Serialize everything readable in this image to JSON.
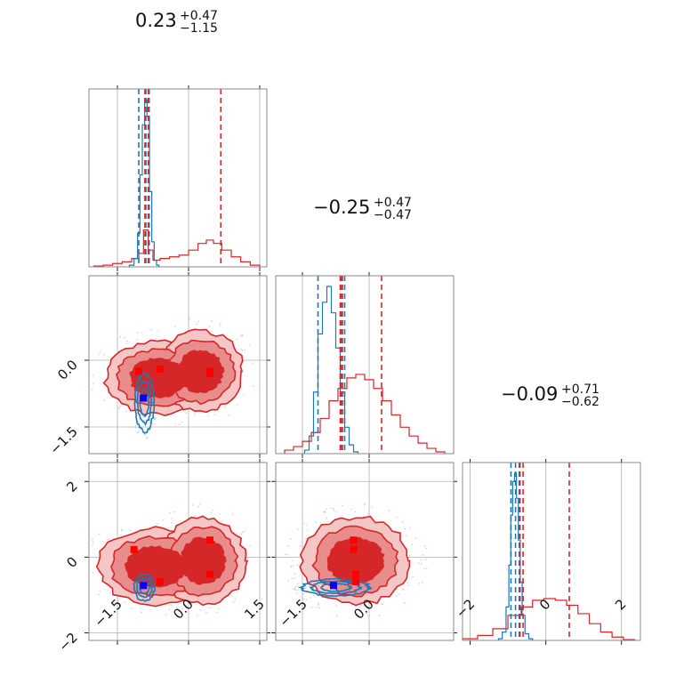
{
  "chart_data": {
    "type": "corner",
    "grid": true,
    "colors": {
      "red": "#d62728",
      "blue": "#1f77b4",
      "red_fill_light": "#f4c6c6",
      "red_fill_mid": "#e88c8c",
      "red_fill_dark": "#d62728",
      "blue_marker": "#0000ff",
      "red_marker": "#ff0000"
    },
    "params": [
      {
        "title": {
          "median": "0.23",
          "plus": "+0.47",
          "minus": "−1.15"
        },
        "range": [
          -2.1,
          1.65
        ],
        "ticks": [
          -1.5,
          0.0,
          1.5
        ],
        "tick_labels": [
          "−1.5",
          "0.0",
          "1.5"
        ]
      },
      {
        "title": {
          "median": "−0.25",
          "plus": "+0.47",
          "minus": "−0.47"
        },
        "range": [
          -2.1,
          1.9
        ],
        "ticks": [
          -1.5,
          0.0
        ],
        "tick_labels": [
          "−1.5",
          "0.0"
        ]
      },
      {
        "title": {
          "median": "−0.09",
          "plus": "+0.71",
          "minus": "−0.62"
        },
        "range": [
          -2.2,
          2.5
        ],
        "ticks": [
          -2,
          0,
          2
        ],
        "tick_labels": [
          "−2",
          "0",
          "2"
        ]
      }
    ],
    "marginals": [
      {
        "red_quantiles": [
          -0.92,
          -0.85,
          0.68
        ],
        "blue_quantiles": [
          -1.05,
          -0.9,
          -0.83
        ],
        "red_hist": {
          "x": [
            -1.9,
            -1.7,
            -1.5,
            -1.3,
            -1.1,
            -1.0,
            -0.9,
            -0.8,
            -0.7,
            -0.5,
            -0.3,
            -0.1,
            0.1,
            0.3,
            0.45,
            0.6,
            0.8,
            1.0,
            1.2,
            1.4
          ],
          "y": [
            0.005,
            0.01,
            0.02,
            0.03,
            0.05,
            0.08,
            0.22,
            0.1,
            0.04,
            0.05,
            0.06,
            0.07,
            0.1,
            0.14,
            0.16,
            0.14,
            0.1,
            0.06,
            0.03,
            0.01
          ]
        },
        "blue_hist": {
          "x": [
            -1.2,
            -1.1,
            -1.05,
            -1.0,
            -0.95,
            -0.9,
            -0.85,
            -0.8,
            -0.75,
            -0.7,
            -0.65
          ],
          "y": [
            0.01,
            0.05,
            0.2,
            0.55,
            0.85,
            1.0,
            0.9,
            0.45,
            0.15,
            0.04,
            0.01
          ]
        }
      },
      {
        "red_quantiles": [
          -0.65,
          -0.6,
          0.28
        ],
        "blue_quantiles": [
          -1.15,
          -0.63,
          -0.55
        ],
        "red_hist": {
          "x": [
            -1.8,
            -1.6,
            -1.4,
            -1.2,
            -1.0,
            -0.8,
            -0.6,
            -0.4,
            -0.2,
            0.0,
            0.2,
            0.4,
            0.6,
            0.8,
            1.0,
            1.2,
            1.4,
            1.6
          ],
          "y": [
            0.02,
            0.04,
            0.07,
            0.12,
            0.2,
            0.3,
            0.37,
            0.43,
            0.45,
            0.42,
            0.37,
            0.3,
            0.22,
            0.15,
            0.1,
            0.06,
            0.03,
            0.01
          ]
        },
        "blue_hist": {
          "x": [
            -1.4,
            -1.3,
            -1.2,
            -1.1,
            -1.0,
            -0.9,
            -0.8,
            -0.7,
            -0.6,
            -0.5,
            -0.4,
            -0.3
          ],
          "y": [
            0.02,
            0.1,
            0.35,
            0.68,
            0.86,
            0.95,
            0.8,
            0.6,
            0.35,
            0.15,
            0.05,
            0.01
          ]
        }
      },
      {
        "red_quantiles": [
          -0.7,
          -0.6,
          0.62
        ],
        "blue_quantiles": [
          -0.92,
          -0.8,
          -0.68
        ],
        "red_hist": {
          "x": [
            -2.0,
            -1.6,
            -1.2,
            -0.8,
            -0.5,
            -0.2,
            0.1,
            0.4,
            0.7,
            1.0,
            1.3,
            1.6,
            1.9,
            2.2
          ],
          "y": [
            0.01,
            0.03,
            0.07,
            0.15,
            0.2,
            0.24,
            0.25,
            0.24,
            0.21,
            0.16,
            0.1,
            0.05,
            0.02,
            0.005
          ]
        },
        "blue_hist": {
          "x": [
            -1.2,
            -1.1,
            -1.0,
            -0.95,
            -0.9,
            -0.85,
            -0.8,
            -0.75,
            -0.7,
            -0.65,
            -0.6,
            -0.5,
            -0.4
          ],
          "y": [
            0.01,
            0.05,
            0.2,
            0.45,
            0.75,
            0.95,
            1.0,
            0.85,
            0.6,
            0.35,
            0.15,
            0.04,
            0.01
          ]
        }
      }
    ],
    "pairs": [
      {
        "row": 1,
        "col": 0,
        "red_points": [
          [
            -1.05,
            -0.25
          ],
          [
            -0.6,
            -0.2
          ],
          [
            0.45,
            -0.25
          ],
          [
            0.45,
            -0.3
          ]
        ],
        "blue_points": [
          [
            -0.95,
            -0.85
          ]
        ],
        "red_regions": [
          {
            "cx": -0.65,
            "cy": -0.4,
            "rx": 1.1,
            "ry": 0.82
          },
          {
            "cx": 0.25,
            "cy": -0.25,
            "rx": 0.9,
            "ry": 0.9
          }
        ],
        "blue_regions": [
          {
            "cx": -0.93,
            "cy": -0.95,
            "rx": 0.2,
            "ry": 0.65
          }
        ]
      },
      {
        "row": 2,
        "col": 0,
        "red_points": [
          [
            -1.15,
            0.2
          ],
          [
            -0.6,
            -0.65
          ],
          [
            0.45,
            0.45
          ],
          [
            0.45,
            -0.45
          ]
        ],
        "blue_points": [
          [
            -0.95,
            -0.75
          ]
        ],
        "red_regions": [
          {
            "cx": -0.7,
            "cy": -0.25,
            "rx": 1.2,
            "ry": 1.0
          },
          {
            "cx": 0.3,
            "cy": -0.1,
            "rx": 0.9,
            "ry": 1.15
          }
        ],
        "blue_regions": [
          {
            "cx": -0.93,
            "cy": -0.8,
            "rx": 0.22,
            "ry": 0.35
          }
        ]
      },
      {
        "row": 2,
        "col": 1,
        "red_points": [
          [
            -0.35,
            0.45
          ],
          [
            -0.35,
            0.2
          ],
          [
            -0.3,
            -0.45
          ],
          [
            -0.3,
            -0.65
          ]
        ],
        "blue_points": [
          [
            -0.8,
            -0.75
          ]
        ],
        "red_regions": [
          {
            "cx": -0.3,
            "cy": -0.1,
            "rx": 1.2,
            "ry": 1.15
          }
        ],
        "blue_regions": [
          {
            "cx": -0.75,
            "cy": -0.8,
            "rx": 0.75,
            "ry": 0.22
          }
        ]
      }
    ]
  }
}
